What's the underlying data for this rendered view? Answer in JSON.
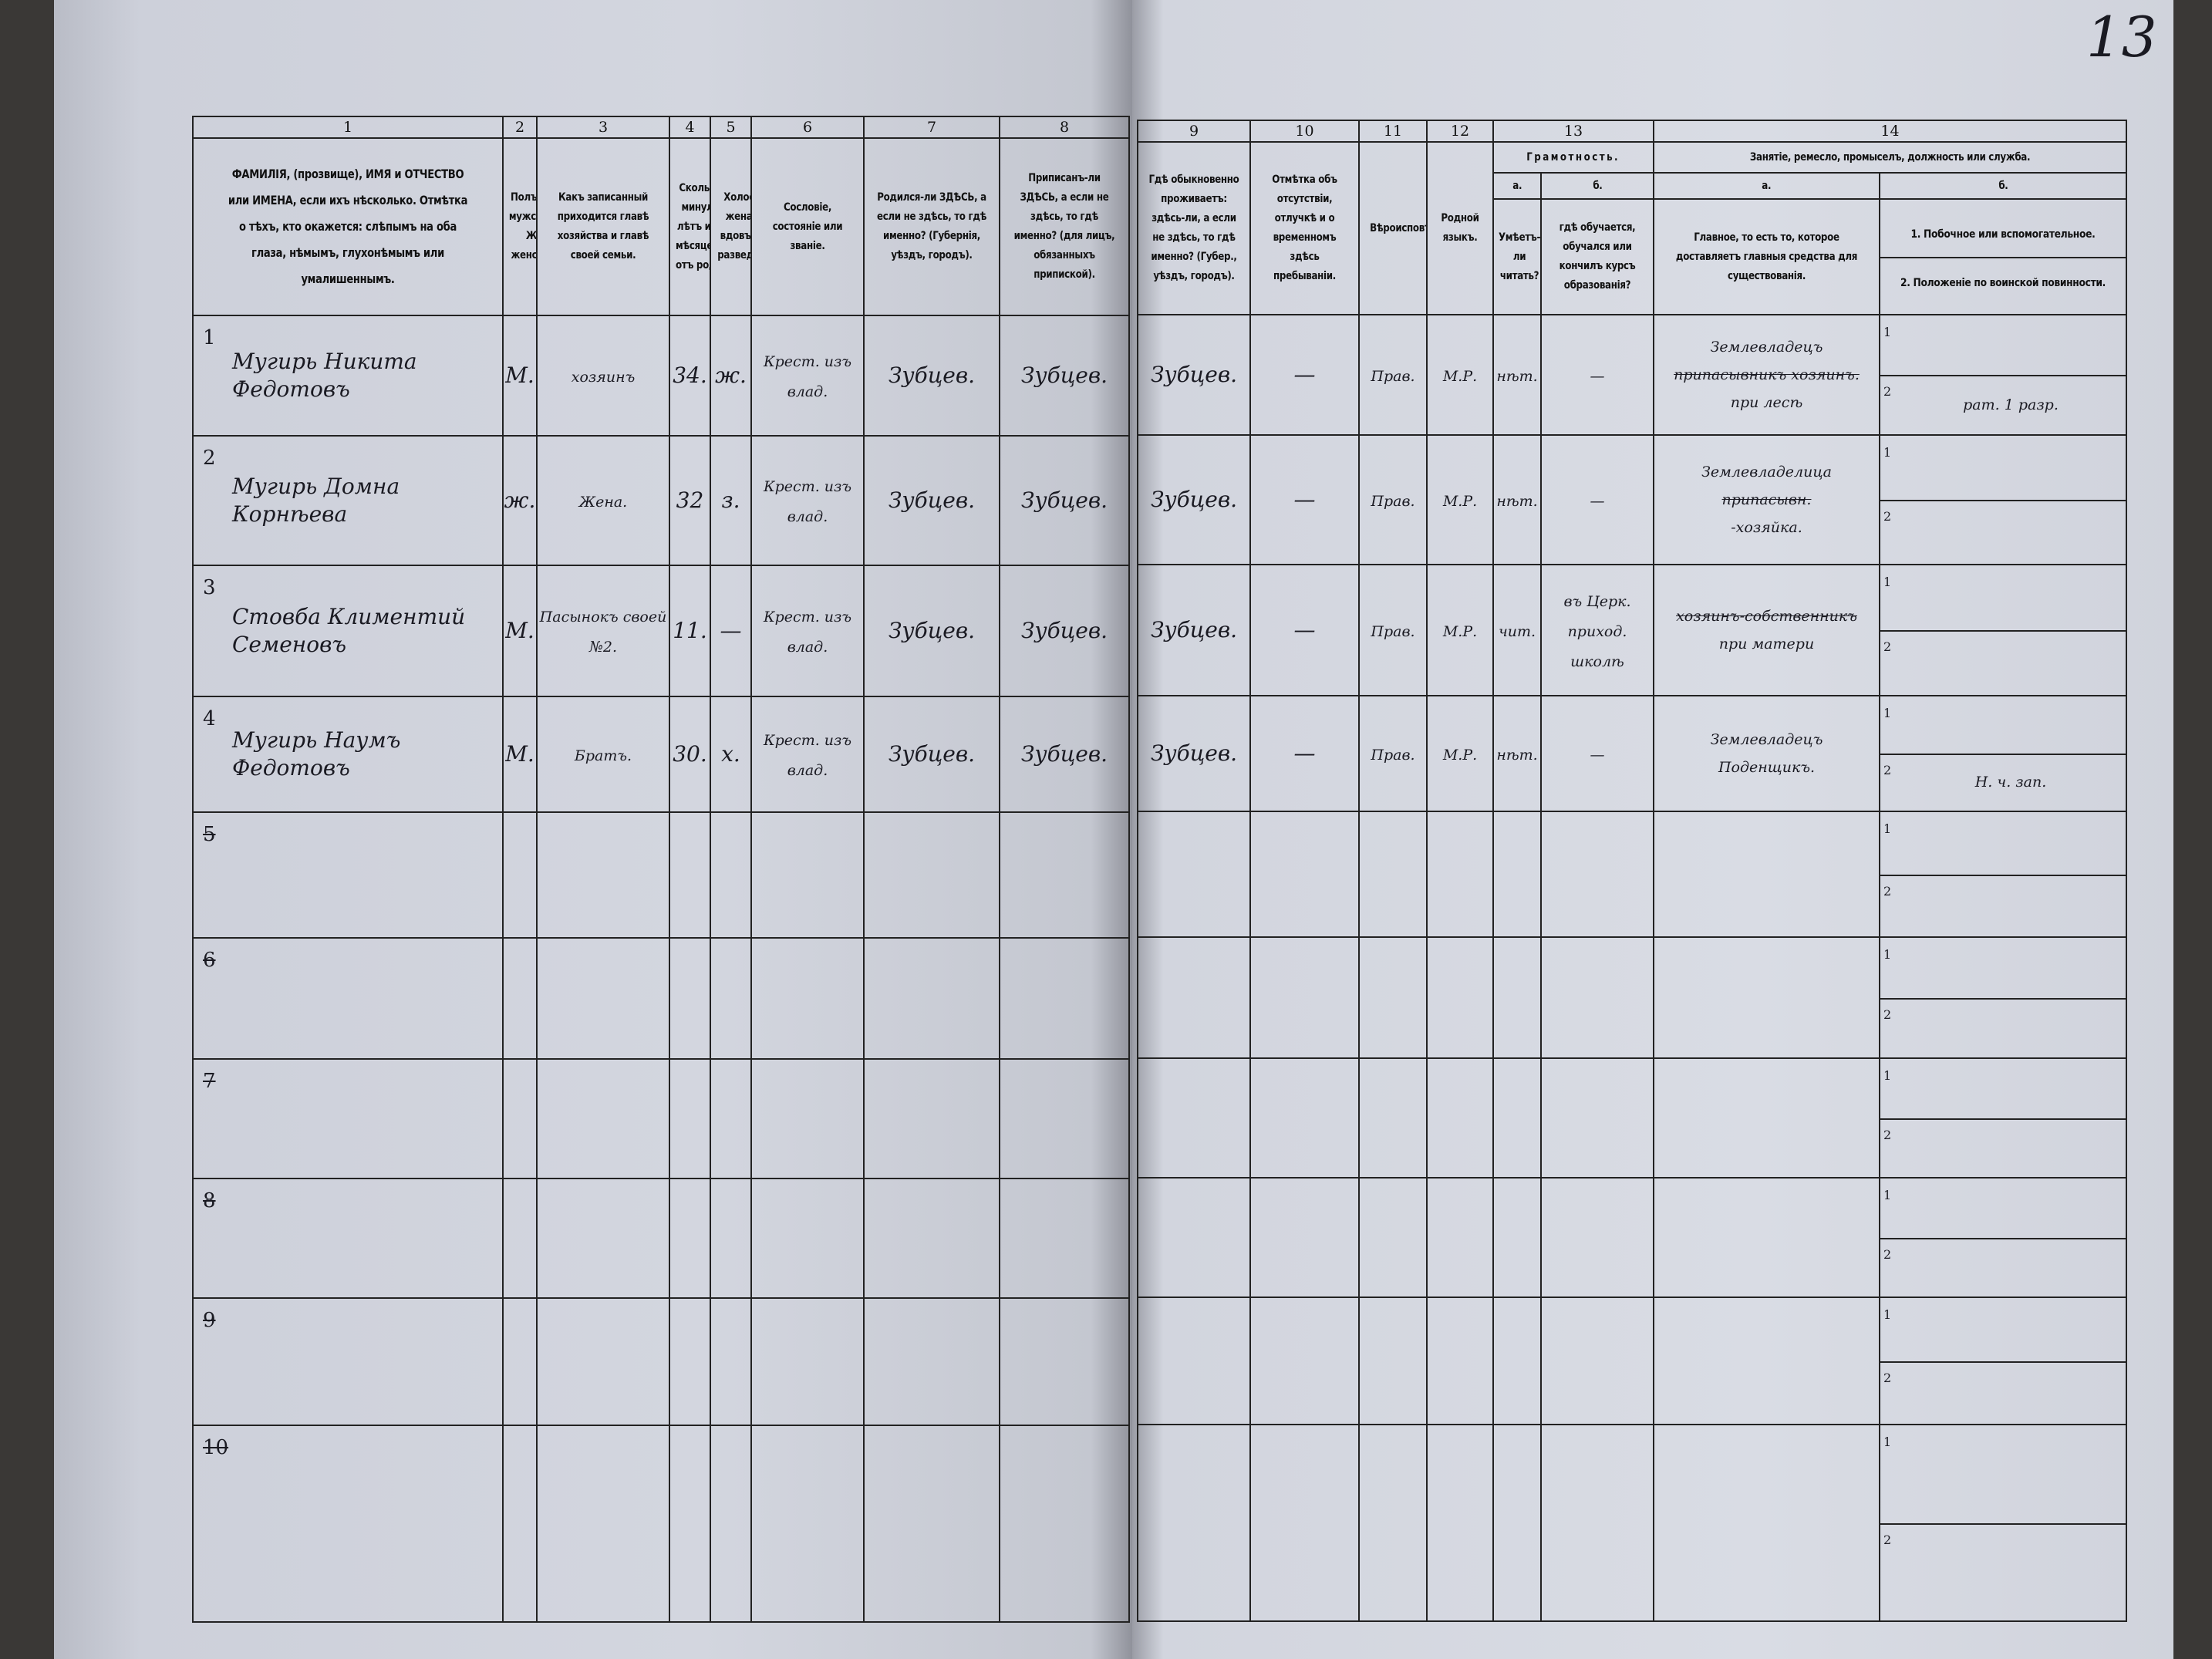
{
  "page_number": "13",
  "left_columns": [
    {
      "num": "1",
      "header": "ФАМИЛІЯ, (прозвище), ИМЯ и ОТЧЕСТВО или ИМЕНА, если ихъ нѣсколько. Отмѣтка о тѣхъ, кто окажется: слѣпымъ на оба глаза, нѣмымъ, глухонѣмымъ или умалишеннымъ."
    },
    {
      "num": "2",
      "header": "Полъ. М-мужской. Ж-женскій."
    },
    {
      "num": "3",
      "header": "Какъ записанный приходится главѣ хозяйства и главѣ своей семьи."
    },
    {
      "num": "4",
      "header": "Сколько минуло лѣтъ или мѣсяцевъ отъ роду."
    },
    {
      "num": "5",
      "header": "Холостъ, женатъ, вдовъ или разведенъ."
    },
    {
      "num": "6",
      "header": "Сословіе, состояніе или званіе."
    },
    {
      "num": "7",
      "header": "Родился-ли ЗДѢСЬ, а если не здѣсь, то гдѣ именно? (Губернія, уѣздъ, городъ)."
    },
    {
      "num": "8",
      "header": "Приписанъ-ли ЗДѢСЬ, а если не здѣсь, то гдѣ именно? (для лицъ, обязанныхъ припиской)."
    }
  ],
  "right_columns": [
    {
      "num": "9",
      "header": "Гдѣ обыкновенно проживаетъ: здѣсь-ли, а если не здѣсь, то гдѣ именно? (Губер., уѣздъ, городъ)."
    },
    {
      "num": "10",
      "header": "Отмѣтка объ отсутствіи, отлучкѣ и о временномъ здѣсь пребываніи."
    },
    {
      "num": "11",
      "header": "Вѣроисповѣданіе."
    },
    {
      "num": "12",
      "header": "Родной языкъ."
    }
  ],
  "literacy": {
    "num": "13",
    "title": "Грамотность.",
    "a_label": "а.",
    "a_header": "Умѣетъ-ли читать?",
    "b_label": "б.",
    "b_header": "гдѣ обучается, обучался или кончилъ курсъ образованія?"
  },
  "occupation": {
    "num": "14",
    "title": "Занятіе, ремесло, промыселъ, должность или служба.",
    "a_label": "а.",
    "a_header": "Главное, то есть то, которое доставляетъ главныя средства для существованія.",
    "b_label": "б.",
    "b_header_1": "1. Побочное или вспомогательное.",
    "b_header_2": "2. Положеніе по воинской повинности.",
    "sub1": "1",
    "sub2": "2"
  },
  "rows": [
    {
      "n": "1",
      "crossed": false,
      "name": "Мугирь Никита Федотовъ",
      "sex": "М.",
      "relation": "хозяинъ",
      "age": "34.",
      "marital": "ж.",
      "estate": "Крест. изъ влад.",
      "born": "Зубцев.",
      "registered": "Зубцев.",
      "resides": "Зубцев.",
      "absence": "—",
      "religion": "Прав.",
      "language": "М.Р.",
      "reads": "нѣт.",
      "school": "—",
      "occupation_main": "Землевладецъ",
      "occupation_struck": "припасывникъ хозяинъ.",
      "occupation_note": "при лесѣ",
      "side": "",
      "military": "рат. 1 разр."
    },
    {
      "n": "2",
      "crossed": false,
      "name": "Мугирь Домна Корнѣева",
      "sex": "ж.",
      "relation": "Жена.",
      "age": "32",
      "marital": "з.",
      "estate": "Крест. изъ влад.",
      "born": "Зубцев.",
      "registered": "Зубцев.",
      "resides": "Зубцев.",
      "absence": "—",
      "religion": "Прав.",
      "language": "М.Р.",
      "reads": "нѣт.",
      "school": "—",
      "occupation_main": "Землевладелица",
      "occupation_struck": "припасывн.",
      "occupation_note": "-хозяйка.",
      "side": "",
      "military": ""
    },
    {
      "n": "3",
      "crossed": false,
      "name": "Стовба Климентий Семеновъ",
      "sex": "М.",
      "relation": "Пасынокъ своей №2.",
      "age": "11.",
      "marital": "—",
      "estate": "Крест. изъ влад.",
      "born": "Зубцев.",
      "registered": "Зубцев.",
      "resides": "Зубцев.",
      "absence": "—",
      "religion": "Прав.",
      "language": "М.Р.",
      "reads": "чит.",
      "school": "въ Церк. приход. школѣ",
      "occupation_main": "",
      "occupation_struck": "хозяинъ-собственникъ",
      "occupation_note": "при матери",
      "side": "",
      "military": ""
    },
    {
      "n": "4",
      "crossed": false,
      "name": "Мугирь Наумъ Федотовъ",
      "sex": "М.",
      "relation": "Братъ.",
      "age": "30.",
      "marital": "х.",
      "estate": "Крест. изъ влад.",
      "born": "Зубцев.",
      "registered": "Зубцев.",
      "resides": "Зубцев.",
      "absence": "—",
      "religion": "Прав.",
      "language": "М.Р.",
      "reads": "нѣт.",
      "school": "—",
      "occupation_main": "Землевладецъ",
      "occupation_struck": "",
      "occupation_note": "Поденщикъ.",
      "side": "",
      "military": "Н. ч. зап."
    },
    {
      "n": "5",
      "crossed": true
    },
    {
      "n": "6",
      "crossed": true
    },
    {
      "n": "7",
      "crossed": true
    },
    {
      "n": "8",
      "crossed": true
    },
    {
      "n": "9",
      "crossed": true
    },
    {
      "n": "10",
      "crossed": true
    }
  ]
}
